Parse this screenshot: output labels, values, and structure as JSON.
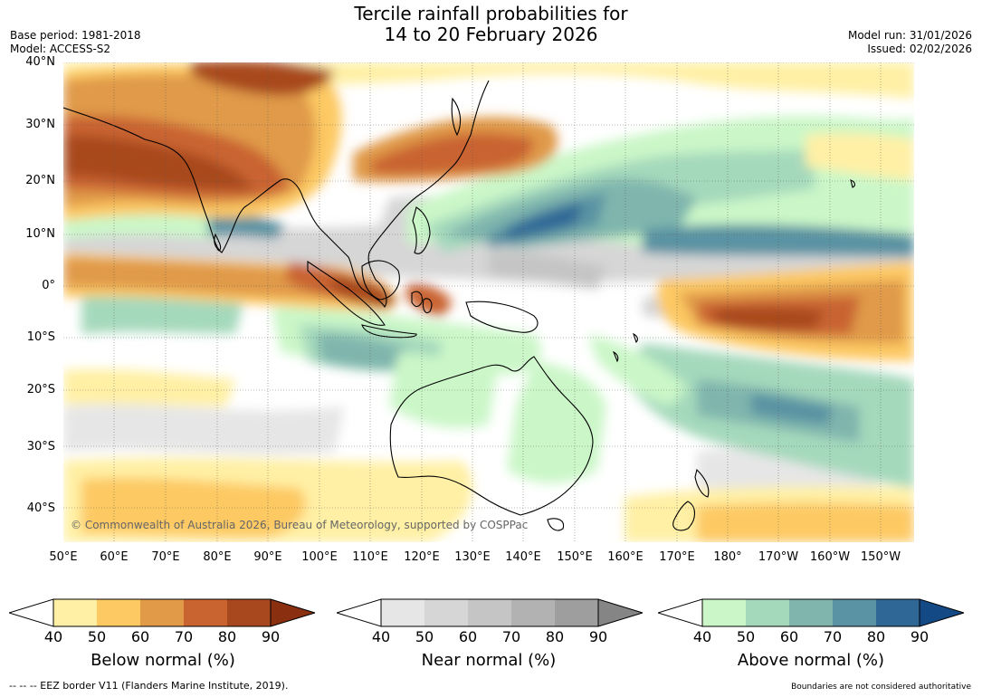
{
  "title": {
    "line1": "Tercile rainfall probabilities for",
    "line2": "14 to 20 February 2026"
  },
  "meta": {
    "base_period": "Base period: 1981-2018",
    "model": "Model: ACCESS-S2",
    "model_run": "Model run: 31/01/2026",
    "issued": "Issued: 02/02/2026"
  },
  "map": {
    "lat_labels": [
      "40°N",
      "30°N",
      "20°N",
      "10°N",
      "0°",
      "10°S",
      "20°S",
      "30°S",
      "40°S"
    ],
    "lon_labels": [
      "50°E",
      "60°E",
      "70°E",
      "80°E",
      "90°E",
      "100°E",
      "110°E",
      "120°E",
      "130°E",
      "140°E",
      "150°E",
      "160°E",
      "170°E",
      "180°",
      "170°W",
      "160°W",
      "150°W"
    ],
    "copyright": "© Commonwealth of Australia 2026, Bureau of Meteorology, supported by COSPPac",
    "colors": {
      "below": [
        "#fff0a5",
        "#fdc963",
        "#e09a48",
        "#c96330",
        "#a8481f",
        "#8a3010"
      ],
      "near": [
        "#e6e6e6",
        "#d6d6d6",
        "#c5c5c5",
        "#b2b2b2",
        "#9e9e9e",
        "#858585"
      ],
      "above": [
        "#cbf7c8",
        "#a5d9bc",
        "#7fb5ad",
        "#5a93a3",
        "#2f6796",
        "#134a86"
      ]
    }
  },
  "colorbars": [
    {
      "title": "Below normal (%)",
      "ticks": [
        "40",
        "50",
        "60",
        "70",
        "80",
        "90"
      ]
    },
    {
      "title": "Near normal (%)",
      "ticks": [
        "40",
        "50",
        "60",
        "70",
        "80",
        "90"
      ]
    },
    {
      "title": "Above normal (%)",
      "ticks": [
        "40",
        "50",
        "60",
        "70",
        "80",
        "90"
      ]
    }
  ],
  "footer": {
    "eez": "--  --  -- EEZ border V11 (Flanders Marine Institute, 2019).",
    "boundaries": "Boundaries are not considered authoritative"
  }
}
